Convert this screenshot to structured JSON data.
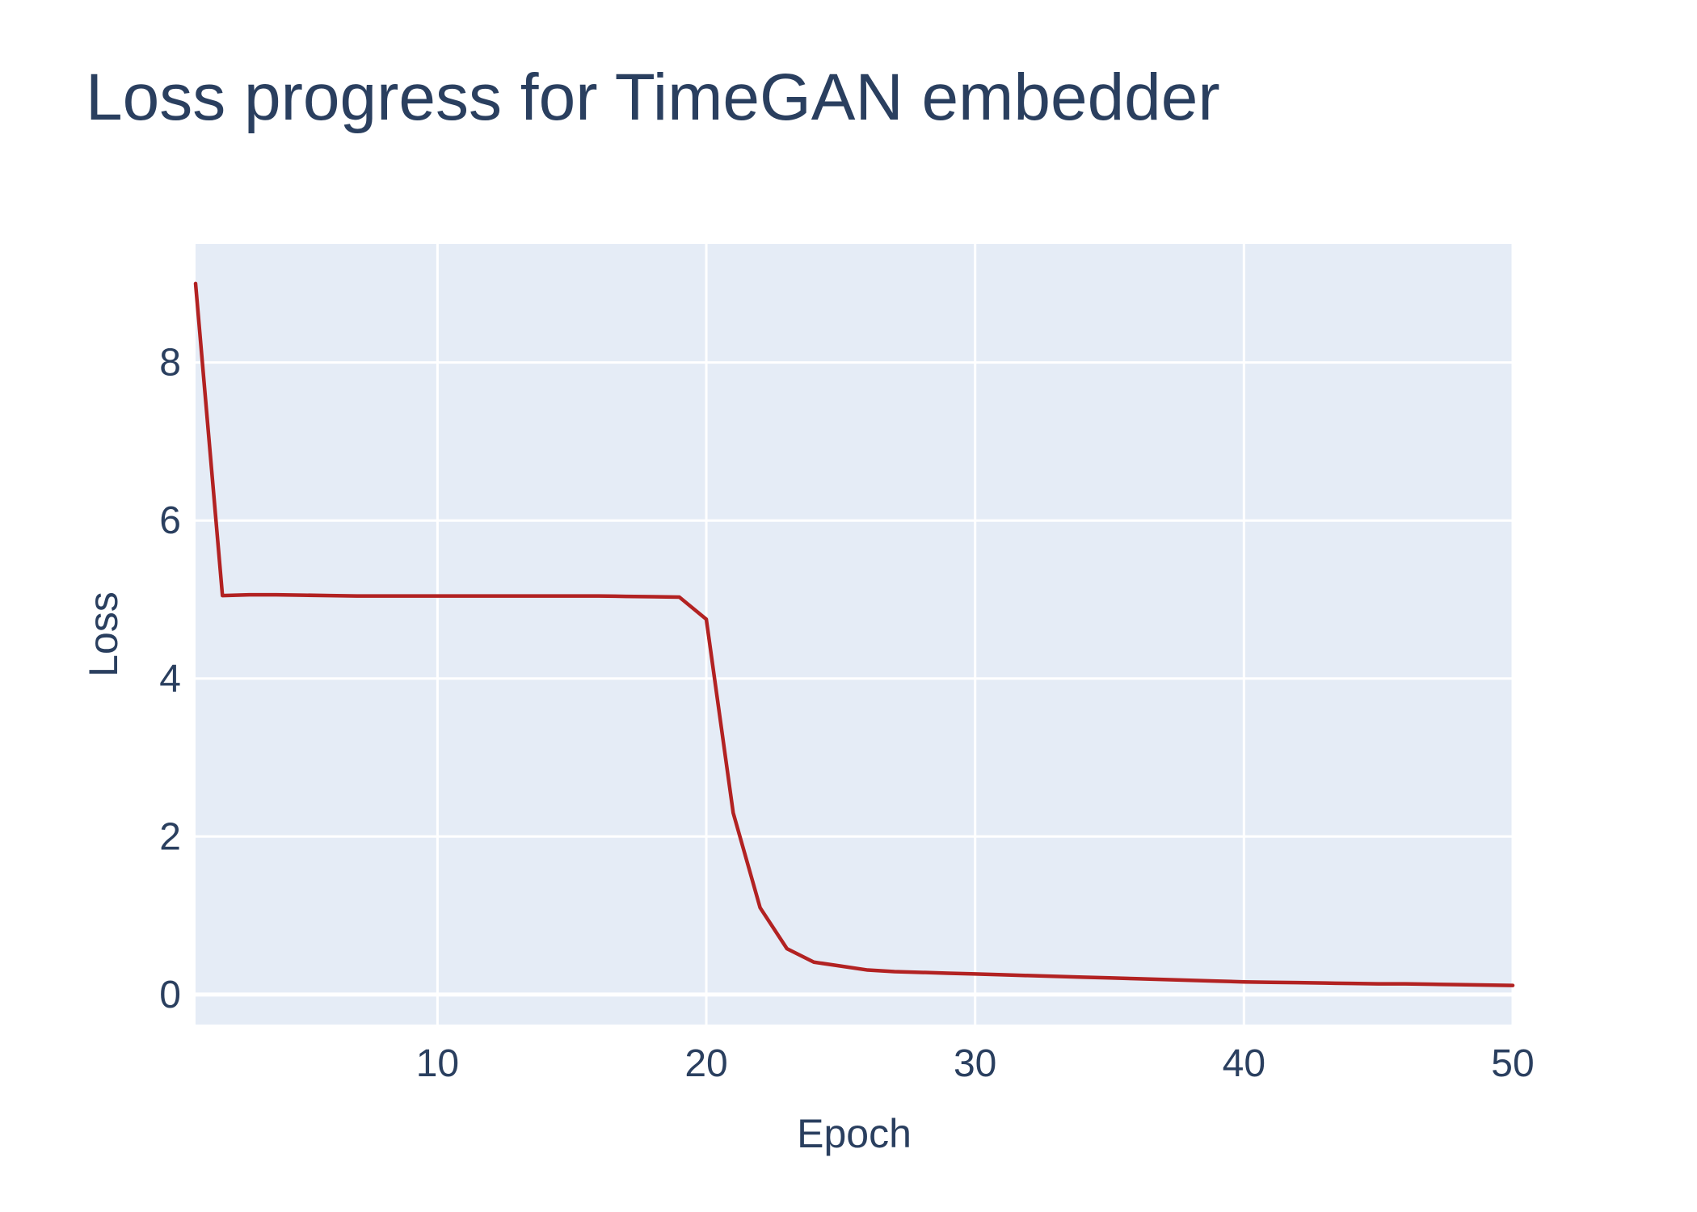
{
  "chart_data": {
    "type": "line",
    "title": "Loss progress for TimeGAN embedder",
    "xlabel": "Epoch",
    "ylabel": "Loss",
    "xlim": [
      1,
      50
    ],
    "ylim": [
      -0.38,
      9.5
    ],
    "x_ticks": [
      10,
      20,
      30,
      40,
      50
    ],
    "y_ticks": [
      0,
      2,
      4,
      6,
      8
    ],
    "grid": true,
    "legend": "none",
    "colors": {
      "plot_background": "#e5ecf6",
      "grid": "#ffffff",
      "text": "#2a3f5f",
      "line": "#b22222"
    },
    "series": [
      {
        "x": [
          1,
          2,
          3,
          4,
          5,
          6,
          7,
          8,
          9,
          10,
          11,
          12,
          13,
          14,
          15,
          16,
          17,
          18,
          19,
          20,
          21,
          22,
          23,
          24,
          25,
          26,
          27,
          28,
          29,
          30,
          31,
          32,
          33,
          34,
          35,
          36,
          37,
          38,
          39,
          40,
          41,
          42,
          43,
          44,
          45,
          46,
          47,
          48,
          49,
          50
        ],
        "y": [
          9.0,
          5.05,
          5.06,
          5.06,
          5.055,
          5.05,
          5.045,
          5.045,
          5.045,
          5.045,
          5.045,
          5.045,
          5.045,
          5.045,
          5.045,
          5.045,
          5.04,
          5.035,
          5.03,
          4.75,
          2.3,
          1.1,
          0.58,
          0.41,
          0.36,
          0.31,
          0.29,
          0.28,
          0.27,
          0.26,
          0.25,
          0.24,
          0.23,
          0.22,
          0.21,
          0.2,
          0.19,
          0.18,
          0.17,
          0.16,
          0.155,
          0.15,
          0.145,
          0.14,
          0.135,
          0.135,
          0.13,
          0.125,
          0.12,
          0.115
        ]
      }
    ]
  }
}
